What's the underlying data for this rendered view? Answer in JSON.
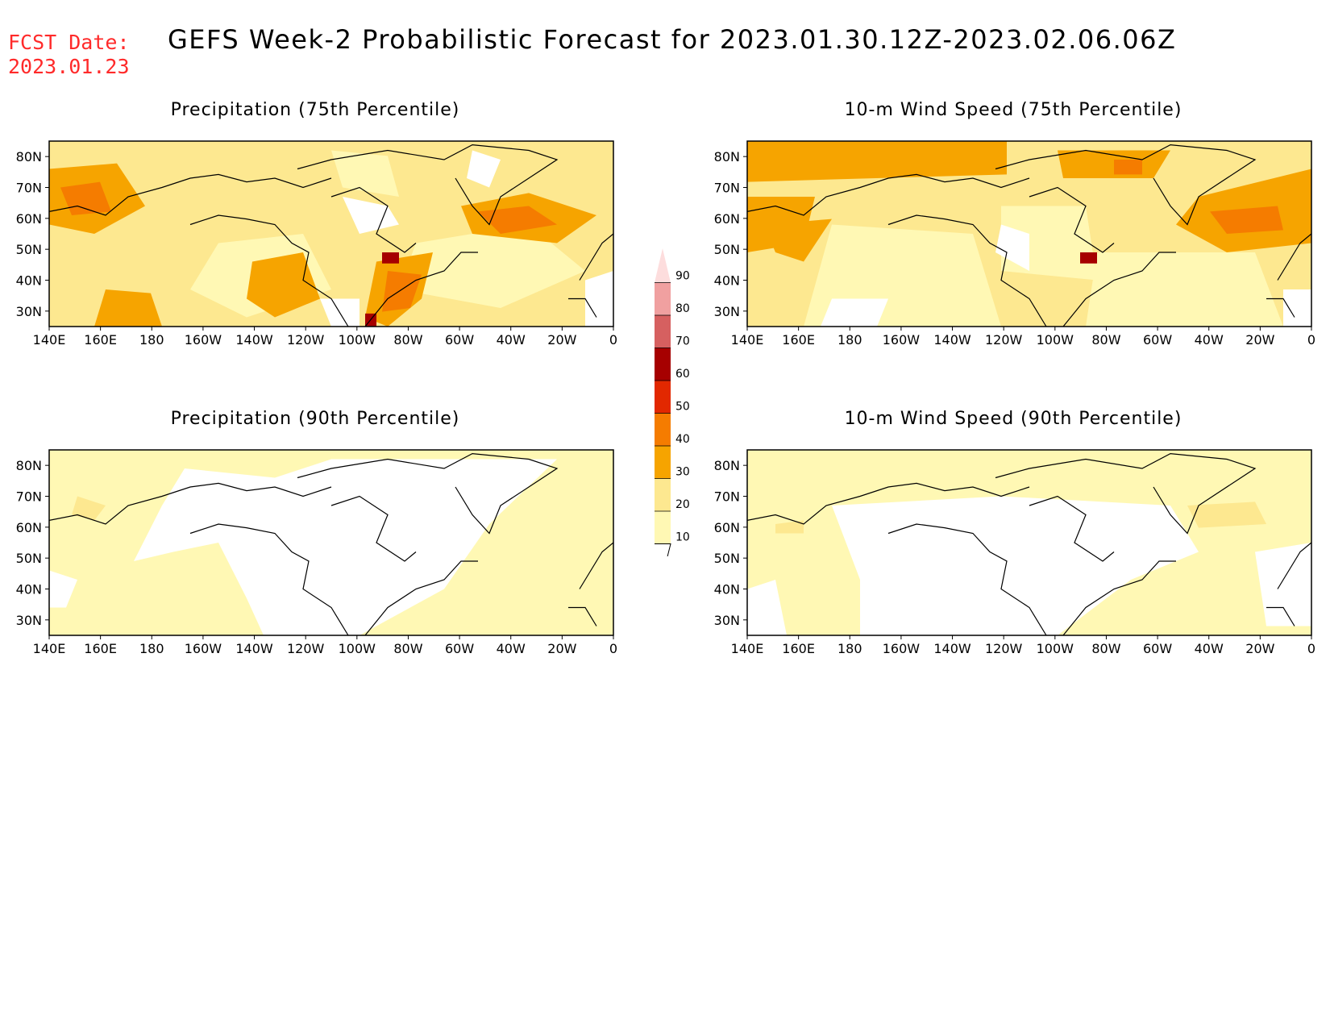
{
  "header": {
    "fcst_label": "FCST Date:",
    "fcst_date": "2023.01.23",
    "title": "GEFS Week-2 Probabilistic Forecast for 2023.01.30.12Z-2023.02.06.06Z"
  },
  "panels": [
    {
      "id": "precip75",
      "title": "Precipitation (75th Percentile)",
      "field": "precip",
      "percentile": 75
    },
    {
      "id": "wind75",
      "title": "10-m Wind Speed (75th Percentile)",
      "field": "wind",
      "percentile": 75
    },
    {
      "id": "precip90",
      "title": "Precipitation (90th Percentile)",
      "field": "precip",
      "percentile": 90
    },
    {
      "id": "wind90",
      "title": "10-m Wind Speed (90th Percentile)",
      "field": "wind",
      "percentile": 90
    }
  ],
  "map": {
    "lon_labels": [
      "140E",
      "160E",
      "180",
      "160W",
      "140W",
      "120W",
      "100W",
      "80W",
      "60W",
      "40W",
      "20W",
      "0"
    ],
    "lat_labels": [
      "80N",
      "70N",
      "60N",
      "50N",
      "40N",
      "30N"
    ]
  },
  "colorbar": {
    "levels": [
      "10",
      "20",
      "30",
      "40",
      "50",
      "60",
      "70",
      "80",
      "90"
    ],
    "colors": [
      "#fff8b4",
      "#fde890",
      "#f6a400",
      "#f57c00",
      "#e22800",
      "#a60000",
      "#d66060",
      "#f0a0a0",
      "#fddddd"
    ]
  }
}
